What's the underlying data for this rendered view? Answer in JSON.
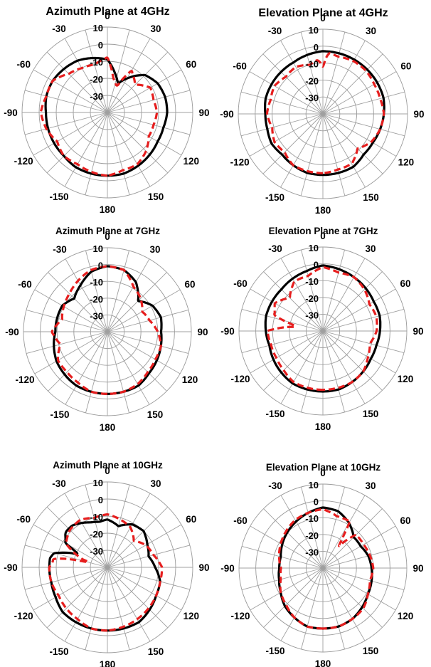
{
  "chart_data": [
    {
      "type": "polar",
      "title": "Azimuth Plane at 4GHz",
      "rlim": [
        -40,
        10
      ],
      "rticks": [
        10,
        0,
        -10,
        -20,
        -30
      ],
      "theta_ticks": [
        0,
        30,
        60,
        90,
        120,
        150,
        180,
        -150,
        -120,
        -90,
        -60,
        -30
      ],
      "series": [
        {
          "style": "solid-black",
          "theta": [
            -180,
            -165,
            -150,
            -135,
            -120,
            -105,
            -90,
            -75,
            -60,
            -45,
            -30,
            -15,
            0,
            10,
            20,
            30,
            45,
            60,
            75,
            90,
            105,
            120,
            135,
            150,
            165,
            180
          ],
          "r": [
            -3,
            -3,
            -3,
            -4,
            -4,
            -4,
            -4,
            -3,
            -3,
            -4,
            -5,
            -7,
            -9,
            -16,
            -22,
            -17,
            -9,
            -6,
            -5,
            -5,
            -6,
            -6,
            -5,
            -4,
            -3,
            -3
          ]
        },
        {
          "style": "dashed-red",
          "theta": [
            -180,
            -165,
            -150,
            -135,
            -120,
            -105,
            -90,
            -75,
            -60,
            -45,
            -30,
            -15,
            0,
            10,
            20,
            30,
            45,
            60,
            75,
            90,
            105,
            120,
            135,
            150,
            165,
            180
          ],
          "r": [
            -3,
            -4,
            -5,
            -4,
            -6,
            -3,
            -1,
            -3,
            -3,
            -8,
            -10,
            -11,
            -8,
            -20,
            -24,
            -12,
            -17,
            -11,
            -12,
            -11,
            -12,
            -12,
            -8,
            -5,
            -5,
            -3
          ]
        }
      ]
    },
    {
      "type": "polar",
      "title": "Elevation Plane at 4GHz",
      "rlim": [
        -40,
        10
      ],
      "rticks": [
        10,
        0,
        -10,
        -20,
        -30
      ],
      "theta_ticks": [
        0,
        30,
        60,
        90,
        120,
        150,
        180,
        -150,
        -120,
        -90,
        -60,
        -30
      ],
      "series": [
        {
          "style": "solid-black",
          "theta": [
            -180,
            -165,
            -150,
            -135,
            -120,
            -105,
            -90,
            -75,
            -60,
            -45,
            -30,
            -15,
            0,
            15,
            30,
            45,
            60,
            75,
            90,
            105,
            120,
            135,
            150,
            165,
            180
          ],
          "r": [
            -4,
            -4,
            -5,
            -6,
            -5,
            -6,
            -6,
            -5,
            -5,
            -5,
            -5,
            -4,
            -3,
            -3,
            -3,
            -3,
            -3,
            -3,
            -4,
            -5,
            -6,
            -6,
            -4,
            -4,
            -4
          ]
        },
        {
          "style": "dashed-red",
          "theta": [
            -180,
            -165,
            -150,
            -135,
            -120,
            -105,
            -90,
            -75,
            -60,
            -45,
            -30,
            -15,
            -5,
            0,
            5,
            15,
            30,
            45,
            60,
            75,
            90,
            105,
            120,
            135,
            150,
            165,
            180
          ],
          "r": [
            -5,
            -5,
            -5,
            -8,
            -7,
            -9,
            -7,
            -8,
            -7,
            -9,
            -8,
            -10,
            -8,
            -12,
            -4,
            -5,
            -4,
            -4,
            -5,
            -5,
            -4,
            -5,
            -7,
            -11,
            -6,
            -6,
            -5
          ]
        }
      ]
    },
    {
      "type": "polar",
      "title": "Azimuth Plane at 7GHz",
      "rlim": [
        -40,
        10
      ],
      "rticks": [
        10,
        0,
        -10,
        -20,
        -30
      ],
      "theta_ticks": [
        0,
        30,
        60,
        90,
        120,
        150,
        180,
        -150,
        -120,
        -90,
        -60,
        -30
      ],
      "series": [
        {
          "style": "solid-black",
          "theta": [
            -180,
            -165,
            -150,
            -135,
            -120,
            -105,
            -90,
            -75,
            -60,
            -45,
            -30,
            -15,
            0,
            15,
            30,
            45,
            60,
            75,
            90,
            105,
            120,
            135,
            150,
            165,
            180
          ],
          "r": [
            -3,
            -3,
            -3,
            -4,
            -5,
            -7,
            -9,
            -9,
            -9,
            -12,
            -8,
            -3,
            -1,
            -2,
            -6,
            -14,
            -9,
            -7,
            -8,
            -7,
            -6,
            -5,
            -3,
            -3,
            -3
          ]
        },
        {
          "style": "dashed-red",
          "theta": [
            -180,
            -165,
            -150,
            -135,
            -120,
            -105,
            -90,
            -75,
            -60,
            -45,
            -30,
            -15,
            0,
            15,
            30,
            45,
            60,
            75,
            90,
            105,
            120,
            135,
            150,
            165,
            180
          ],
          "r": [
            -3,
            -3,
            -5,
            -6,
            -6,
            -11,
            -7,
            -12,
            -10,
            -8,
            -5,
            -2,
            -1,
            -2,
            -9,
            -12,
            -16,
            -14,
            -10,
            -7,
            -7,
            -6,
            -4,
            -3,
            -3
          ]
        }
      ]
    },
    {
      "type": "polar",
      "title": "Elevation Plane at 7GHz",
      "rlim": [
        -40,
        10
      ],
      "rticks": [
        10,
        0,
        -10,
        -20,
        -30
      ],
      "theta_ticks": [
        0,
        30,
        60,
        90,
        120,
        150,
        180,
        -150,
        -120,
        -90,
        -60,
        -30
      ],
      "series": [
        {
          "style": "solid-black",
          "theta": [
            -180,
            -165,
            -150,
            -135,
            -120,
            -105,
            -90,
            -75,
            -60,
            -45,
            -30,
            -15,
            0,
            15,
            30,
            45,
            60,
            75,
            90,
            105,
            120,
            135,
            150,
            165,
            180
          ],
          "r": [
            -4,
            -4,
            -4,
            -5,
            -6,
            -7,
            -6,
            -5,
            -5,
            -5,
            -4,
            -3,
            -1,
            -2,
            -3,
            -4,
            -5,
            -5,
            -6,
            -7,
            -7,
            -6,
            -5,
            -4,
            -4
          ]
        },
        {
          "style": "dashed-red",
          "theta": [
            -180,
            -165,
            -150,
            -135,
            -120,
            -105,
            -90,
            -80,
            -72,
            -60,
            -45,
            -30,
            -15,
            0,
            15,
            30,
            45,
            60,
            75,
            90,
            105,
            120,
            135,
            150,
            165,
            180
          ],
          "r": [
            -5,
            -5,
            -5,
            -7,
            -8,
            -8,
            -7,
            -25,
            -10,
            -7,
            -12,
            -6,
            -6,
            -2,
            -4,
            -3,
            -5,
            -8,
            -7,
            -8,
            -11,
            -9,
            -6,
            -5,
            -5,
            -5
          ]
        }
      ]
    },
    {
      "type": "polar",
      "title": "Azimuth Plane at 10GHz",
      "rlim": [
        -40,
        10
      ],
      "rticks": [
        10,
        0,
        -10,
        -20,
        -30
      ],
      "theta_ticks": [
        0,
        30,
        60,
        90,
        120,
        150,
        180,
        -150,
        -120,
        -90,
        -60,
        -30
      ],
      "series": [
        {
          "style": "solid-black",
          "theta": [
            -180,
            -165,
            -150,
            -135,
            -120,
            -105,
            -90,
            -80,
            -75,
            -65,
            -60,
            -50,
            -40,
            -30,
            -20,
            -10,
            0,
            15,
            30,
            45,
            60,
            75,
            90,
            105,
            120,
            135,
            150,
            165,
            180
          ],
          "r": [
            -3,
            -3,
            -3,
            -3,
            -5,
            -6,
            -6,
            -6,
            -8,
            -22,
            -12,
            -8,
            -8,
            -10,
            -12,
            -13,
            -12,
            -15,
            -11,
            -10,
            -13,
            -15,
            -12,
            -8,
            -7,
            -5,
            -3,
            -3,
            -3
          ]
        },
        {
          "style": "dashed-red",
          "theta": [
            -180,
            -165,
            -150,
            -135,
            -120,
            -105,
            -90,
            -80,
            -75,
            -60,
            -45,
            -30,
            -15,
            0,
            15,
            30,
            45,
            60,
            75,
            90,
            105,
            120,
            135,
            150,
            165,
            180
          ],
          "r": [
            -3,
            -3,
            -5,
            -6,
            -7,
            -6,
            -6,
            -9,
            -28,
            -12,
            -9,
            -8,
            -10,
            -9,
            -11,
            -13,
            -18,
            -14,
            -12,
            -8,
            -8,
            -7,
            -6,
            -5,
            -4,
            -3
          ]
        }
      ]
    },
    {
      "type": "polar",
      "title": "Elevation Plane at 10GHz",
      "rlim": [
        -40,
        10
      ],
      "rticks": [
        10,
        0,
        -10,
        -20,
        -30
      ],
      "theta_ticks": [
        0,
        30,
        60,
        90,
        120,
        150,
        180,
        -150,
        -120,
        -90,
        -60,
        -30
      ],
      "series": [
        {
          "style": "solid-black",
          "theta": [
            -180,
            -165,
            -150,
            -135,
            -120,
            -105,
            -90,
            -75,
            -60,
            -45,
            -30,
            -15,
            0,
            15,
            30,
            45,
            60,
            75,
            90,
            105,
            120,
            135,
            150,
            165,
            180
          ],
          "r": [
            -4,
            -4,
            -6,
            -8,
            -11,
            -13,
            -14,
            -14,
            -12,
            -10,
            -8,
            -6,
            -4,
            -5,
            -9,
            -14,
            -14,
            -12,
            -11,
            -10,
            -9,
            -7,
            -5,
            -4,
            -4
          ]
        },
        {
          "style": "dashed-red",
          "theta": [
            -180,
            -165,
            -150,
            -135,
            -120,
            -105,
            -90,
            -75,
            -60,
            -45,
            -30,
            -15,
            0,
            15,
            30,
            35,
            45,
            60,
            75,
            90,
            105,
            120,
            135,
            150,
            165,
            180
          ],
          "r": [
            -4,
            -4,
            -6,
            -9,
            -11,
            -14,
            -15,
            -13,
            -11,
            -9,
            -7,
            -6,
            -5,
            -8,
            -8,
            -25,
            -12,
            -12,
            -11,
            -10,
            -11,
            -9,
            -6,
            -5,
            -4,
            -4
          ]
        }
      ]
    }
  ]
}
